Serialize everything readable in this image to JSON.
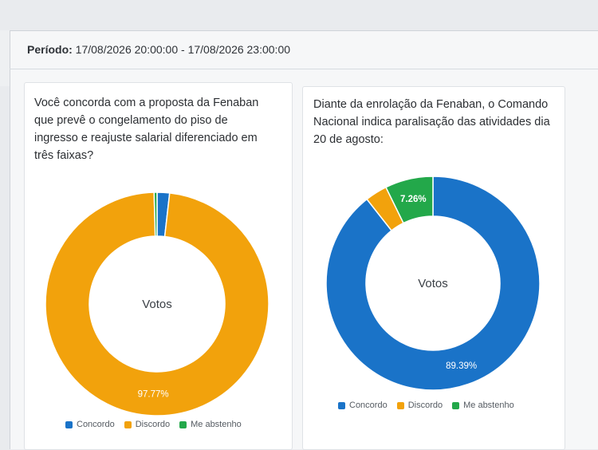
{
  "header": {
    "period_label": "Período:",
    "period_value": "17/08/2026 20:00:00 - 17/08/2026 23:00:00"
  },
  "legend_labels": [
    "Concordo",
    "Discordo",
    "Me abstenho"
  ],
  "colors": {
    "concordo": "#1a73c8",
    "discordo": "#f2a20c",
    "abstenho": "#23a84a"
  },
  "chart_data": [
    {
      "type": "pie",
      "title": "Você concorda com a proposta da Fenaban que prevê o congelamento do piso de ingresso e reajuste salarial diferenciado em três faixas?",
      "center_label": "Votos",
      "categories": [
        "Concordo",
        "Discordo",
        "Me abstenho"
      ],
      "values": [
        1.8,
        97.77,
        0.43
      ],
      "value_labels": [
        "",
        "97.77%",
        ""
      ],
      "legend": "bottom"
    },
    {
      "type": "pie",
      "title": "Diante da enrolação da Fenaban, o Comando Nacional indica paralisação das atividades dia 20 de agosto:",
      "center_label": "Votos",
      "categories": [
        "Concordo",
        "Discordo",
        "Me abstenho"
      ],
      "values": [
        89.39,
        3.35,
        7.26
      ],
      "value_labels": [
        "89.39%",
        "",
        "7.26%"
      ],
      "legend": "bottom"
    }
  ]
}
